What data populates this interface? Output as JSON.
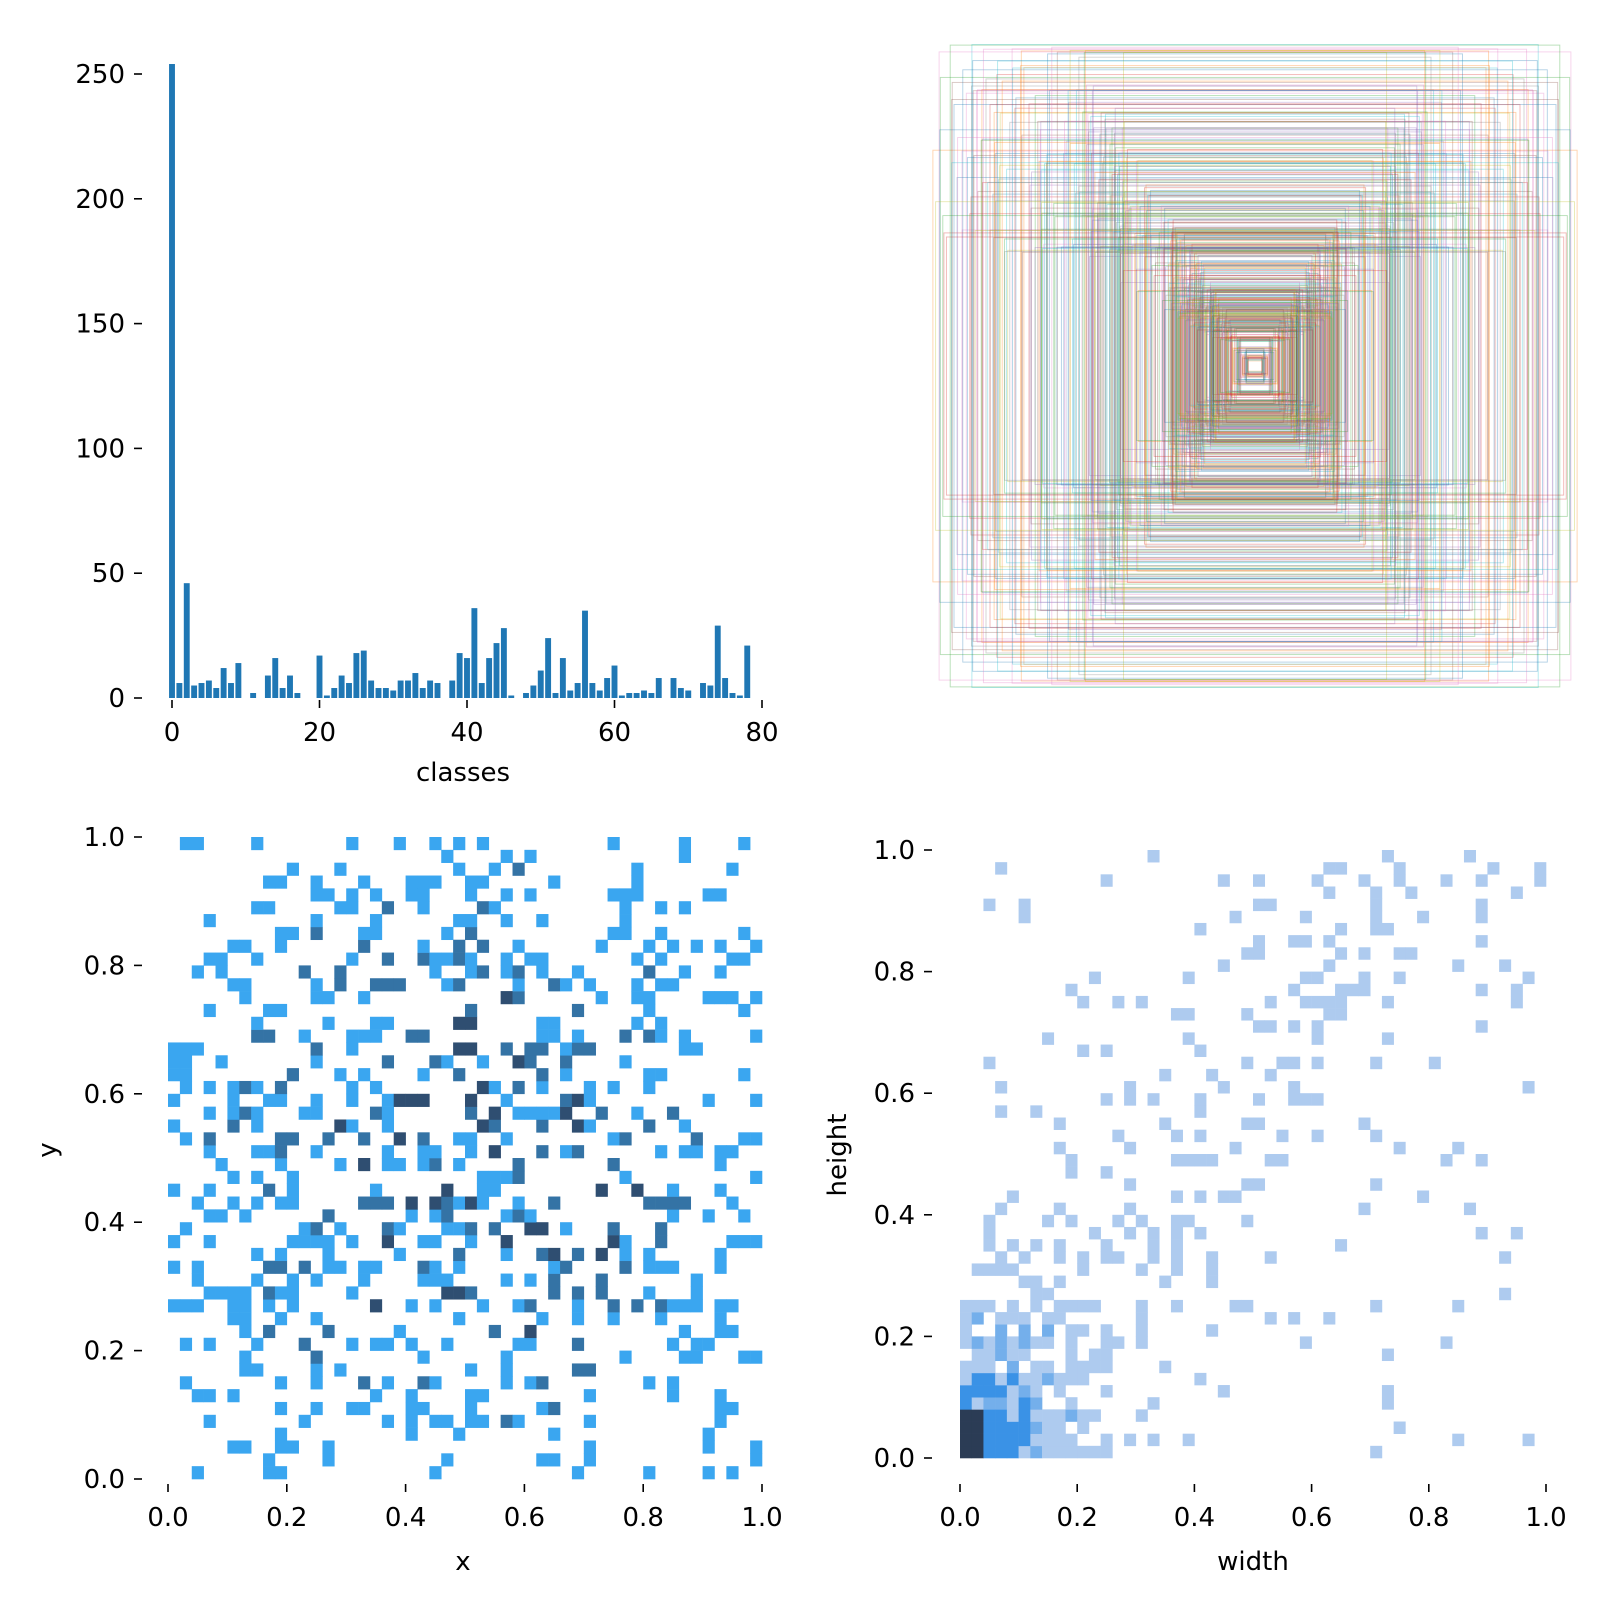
{
  "chart_data": [
    {
      "type": "bar",
      "xlabel": "classes",
      "ylabel": "",
      "xlim": [
        -2,
        82
      ],
      "ylim": [
        0,
        255
      ],
      "xticks": [
        "0",
        "20",
        "40",
        "60",
        "80"
      ],
      "yticks": [
        "0",
        "50",
        "100",
        "150",
        "200",
        "250"
      ],
      "color": "#1f77b4",
      "categories": [
        0,
        1,
        2,
        3,
        4,
        5,
        6,
        7,
        8,
        9,
        10,
        11,
        12,
        13,
        14,
        15,
        16,
        17,
        18,
        19,
        20,
        21,
        22,
        23,
        24,
        25,
        26,
        27,
        28,
        29,
        30,
        31,
        32,
        33,
        34,
        35,
        36,
        37,
        38,
        39,
        40,
        41,
        42,
        43,
        44,
        45,
        46,
        47,
        48,
        49,
        50,
        51,
        52,
        53,
        54,
        55,
        56,
        57,
        58,
        59,
        60,
        61,
        62,
        63,
        64,
        65,
        66,
        67,
        68,
        69,
        70,
        71,
        72,
        73,
        74,
        75,
        76,
        77,
        78,
        79
      ],
      "values": [
        254,
        6,
        46,
        5,
        6,
        7,
        4,
        12,
        6,
        14,
        0,
        2,
        0,
        9,
        16,
        4,
        9,
        2,
        0,
        0,
        17,
        1,
        4,
        9,
        6,
        18,
        19,
        7,
        4,
        4,
        3,
        7,
        7,
        10,
        4,
        7,
        6,
        0,
        7,
        18,
        16,
        36,
        6,
        16,
        22,
        28,
        1,
        0,
        2,
        5,
        11,
        24,
        2,
        16,
        3,
        6,
        35,
        6,
        3,
        8,
        13,
        1,
        2,
        2,
        3,
        2,
        8,
        0,
        8,
        4,
        3,
        0,
        6,
        5,
        29,
        8,
        2,
        1,
        21,
        0
      ]
    },
    {
      "type": "scatter",
      "subtype": "box-overlay",
      "note_series": "labels drawn as centered boxes (x=0.5, y=0.5) with width/height",
      "palette": [
        "#1f77b4",
        "#ff7f0e",
        "#2ca02c",
        "#d62728",
        "#9467bd",
        "#8c564b",
        "#e377c2",
        "#7f7f7f",
        "#bcbd22",
        "#17becf"
      ],
      "box_count": 500
    },
    {
      "type": "heatmap",
      "xlabel": "x",
      "ylabel": "y",
      "xlim": [
        0,
        1
      ],
      "ylim": [
        0,
        1
      ],
      "xticks": [
        "0.0",
        "0.2",
        "0.4",
        "0.6",
        "0.8",
        "1.0"
      ],
      "yticks": [
        "0.0",
        "0.2",
        "0.4",
        "0.6",
        "0.8",
        "1.0"
      ],
      "bins": 50,
      "low_color": "#3aa6f0",
      "high_color": "#2d3f5a"
    },
    {
      "type": "heatmap",
      "xlabel": "width",
      "ylabel": "height",
      "xlim": [
        0,
        1
      ],
      "ylim": [
        0,
        1
      ],
      "xticks": [
        "0.0",
        "0.2",
        "0.4",
        "0.6",
        "0.8",
        "1.0"
      ],
      "yticks": [
        "0.0",
        "0.2",
        "0.4",
        "0.6",
        "0.8",
        "1.0"
      ],
      "bins": 50,
      "low_color": "#aecbef",
      "mid_color": "#3a92e6",
      "high_color": "#2b3c55"
    }
  ]
}
